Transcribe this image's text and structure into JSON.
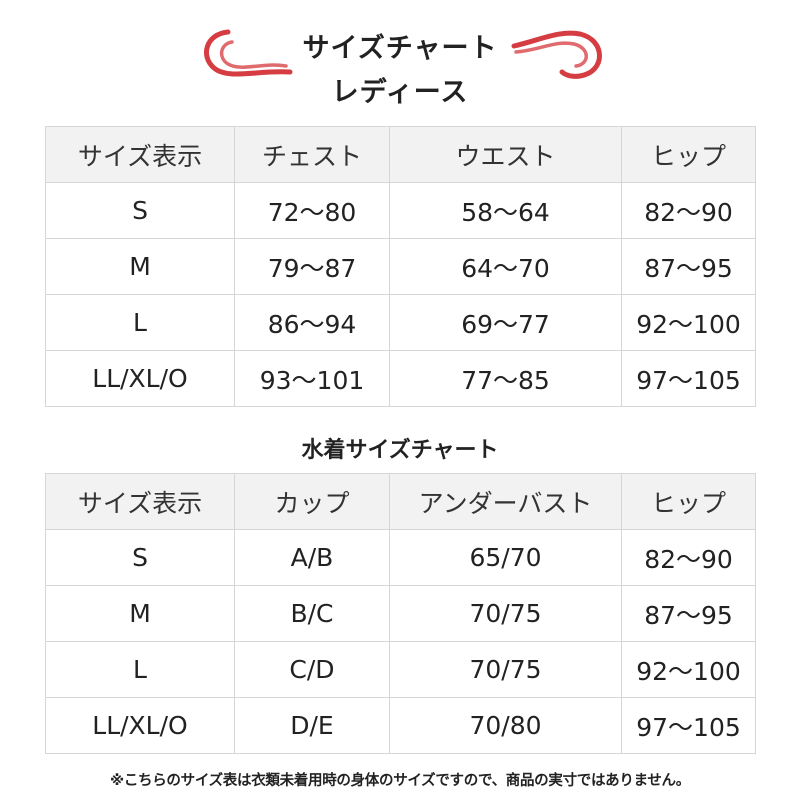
{
  "header": {
    "title_line1": "サイズチャート",
    "title_line2": "レディース",
    "accent_color": "#d0282e"
  },
  "ladies": {
    "columns": [
      "サイズ表示",
      "チェスト",
      "ウエスト",
      "ヒップ"
    ],
    "rows": [
      [
        "S",
        "72〜80",
        "58〜64",
        "82〜90"
      ],
      [
        "M",
        "79〜87",
        "64〜70",
        "87〜95"
      ],
      [
        "L",
        "86〜94",
        "69〜77",
        "92〜100"
      ],
      [
        "LL/XL/O",
        "93〜101",
        "77〜85",
        "97〜105"
      ]
    ]
  },
  "swimwear": {
    "title": "水着サイズチャート",
    "columns": [
      "サイズ表示",
      "カップ",
      "アンダーバスト",
      "ヒップ"
    ],
    "rows": [
      [
        "S",
        "A/B",
        "65/70",
        "82〜90"
      ],
      [
        "M",
        "B/C",
        "70/75",
        "87〜95"
      ],
      [
        "L",
        "C/D",
        "70/75",
        "92〜100"
      ],
      [
        "LL/XL/O",
        "D/E",
        "70/80",
        "97〜105"
      ]
    ]
  },
  "footnote": "※こちらのサイズ表は衣類未着用時の身体のサイズですので、商品の実寸ではありません。"
}
